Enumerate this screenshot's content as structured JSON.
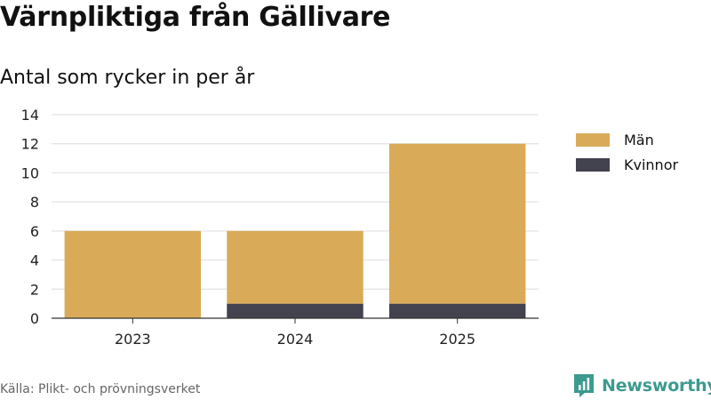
{
  "header": {
    "title": "Värnpliktiga från Gällivare",
    "subtitle": "Antal som rycker in per år"
  },
  "chart_data": {
    "type": "bar",
    "stacked": true,
    "categories": [
      "2023",
      "2024",
      "2025"
    ],
    "series": [
      {
        "name": "Kvinnor",
        "values": [
          0,
          1,
          1
        ],
        "color": "#43424f"
      },
      {
        "name": "Män",
        "values": [
          6,
          5,
          11
        ],
        "color": "#d9ab59"
      }
    ],
    "ylim": [
      0,
      14
    ],
    "yticks": [
      0,
      2,
      4,
      6,
      8,
      10,
      12,
      14
    ],
    "grid": true,
    "legend_position": "right",
    "legend_order": [
      "Män",
      "Kvinnor"
    ]
  },
  "footer": {
    "source": "Källa: Plikt- och prövningsverket",
    "brand": "Newsworthy",
    "brand_color": "#3d9a8f",
    "brand_icon": "newsworthy-logo-icon"
  }
}
